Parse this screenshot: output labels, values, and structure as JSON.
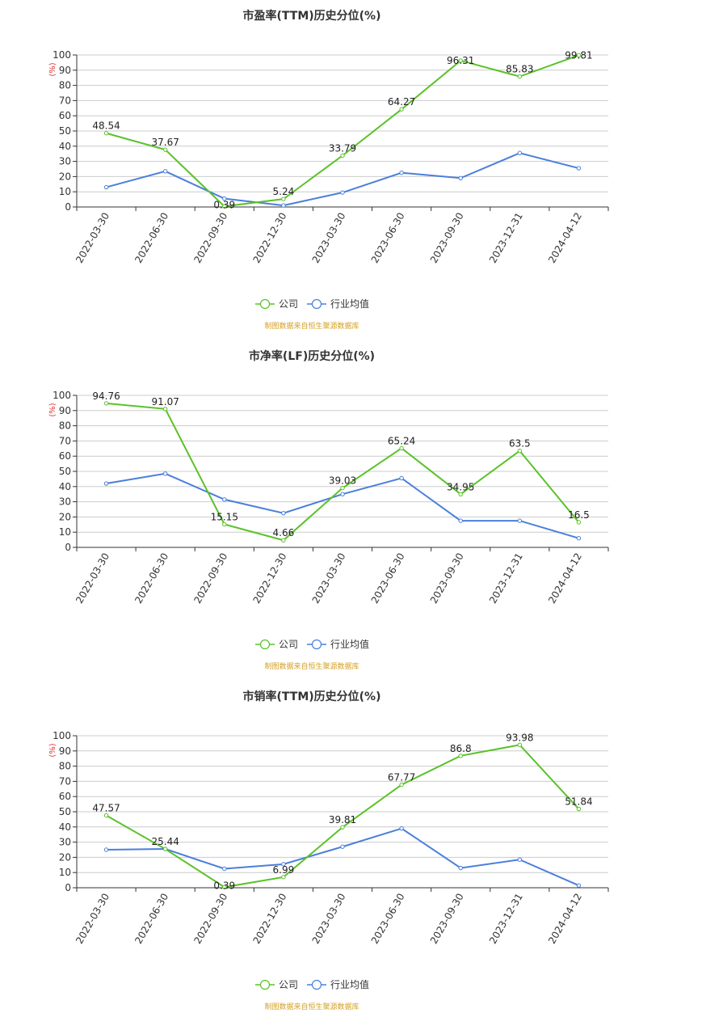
{
  "charts": [
    {
      "title": "市盈率(TTM)历史分位(%)",
      "unit": "(%)",
      "legend": [
        "公司",
        "行业均值"
      ],
      "source": "制图数据来自恒生聚源数据库"
    },
    {
      "title": "市净率(LF)历史分位(%)",
      "unit": "(%)",
      "legend": [
        "公司",
        "行业均值"
      ],
      "source": "制图数据来自恒生聚源数据库"
    },
    {
      "title": "市销率(TTM)历史分位(%)",
      "unit": "(%)",
      "legend": [
        "公司",
        "行业均值"
      ],
      "source": "制图数据来自恒生聚源数据库"
    }
  ],
  "colors": {
    "company": "#5ac229",
    "industry": "#4a7fdc",
    "grid": "#cccccc",
    "axis": "#333333",
    "source": "#d4a021"
  },
  "chart_data": [
    {
      "type": "line",
      "title": "市盈率(TTM)历史分位(%)",
      "ylabel": "(%)",
      "ylim": [
        0,
        100
      ],
      "yticks": [
        0,
        10,
        20,
        30,
        40,
        50,
        60,
        70,
        80,
        90,
        100
      ],
      "categories": [
        "2022-03-30",
        "2022-06-30",
        "2022-09-30",
        "2022-12-30",
        "2023-03-30",
        "2023-06-30",
        "2023-09-30",
        "2023-12-31",
        "2024-04-12"
      ],
      "series": [
        {
          "name": "公司",
          "values": [
            48.54,
            37.67,
            0.39,
            5.24,
            33.79,
            64.27,
            96.31,
            85.83,
            99.81
          ],
          "labels": [
            "48.54",
            "37.67",
            "0.39",
            "5.24",
            "33.79",
            "64.27",
            "96.31",
            "85.83",
            "99.81"
          ]
        },
        {
          "name": "行业均值",
          "values": [
            13,
            23.5,
            5.5,
            1,
            9.5,
            22.5,
            19,
            35.5,
            25.5
          ]
        }
      ],
      "grid": true,
      "legend_position": "bottom"
    },
    {
      "type": "line",
      "title": "市净率(LF)历史分位(%)",
      "ylabel": "(%)",
      "ylim": [
        0,
        100
      ],
      "yticks": [
        0,
        10,
        20,
        30,
        40,
        50,
        60,
        70,
        80,
        90,
        100
      ],
      "categories": [
        "2022-03-30",
        "2022-06-30",
        "2022-09-30",
        "2022-12-30",
        "2023-03-30",
        "2023-06-30",
        "2023-09-30",
        "2023-12-31",
        "2024-04-12"
      ],
      "series": [
        {
          "name": "公司",
          "values": [
            94.76,
            91.07,
            15.15,
            4.66,
            39.03,
            65.24,
            34.95,
            63.5,
            16.5
          ],
          "labels": [
            "94.76",
            "91.07",
            "15.15",
            "4.66",
            "39.03",
            "65.24",
            "34.95",
            "63.5",
            "16.5"
          ]
        },
        {
          "name": "行业均值",
          "values": [
            42,
            48.5,
            31.5,
            22.5,
            35,
            45.5,
            17.5,
            17.5,
            6
          ]
        }
      ],
      "grid": true,
      "legend_position": "bottom"
    },
    {
      "type": "line",
      "title": "市销率(TTM)历史分位(%)",
      "ylabel": "(%)",
      "ylim": [
        0,
        100
      ],
      "yticks": [
        0,
        10,
        20,
        30,
        40,
        50,
        60,
        70,
        80,
        90,
        100
      ],
      "categories": [
        "2022-03-30",
        "2022-06-30",
        "2022-09-30",
        "2022-12-30",
        "2023-03-30",
        "2023-06-30",
        "2023-09-30",
        "2023-12-31",
        "2024-04-12"
      ],
      "series": [
        {
          "name": "公司",
          "values": [
            47.57,
            25.44,
            0.39,
            6.99,
            39.81,
            67.77,
            86.8,
            93.98,
            51.84
          ],
          "labels": [
            "47.57",
            "25.44",
            "0.39",
            "6.99",
            "39.81",
            "67.77",
            "86.8",
            "93.98",
            "51.84"
          ]
        },
        {
          "name": "行业均值",
          "values": [
            25,
            25.5,
            12.5,
            15.5,
            27,
            39,
            13,
            18.5,
            1.5
          ]
        }
      ],
      "grid": true,
      "legend_position": "bottom"
    }
  ]
}
